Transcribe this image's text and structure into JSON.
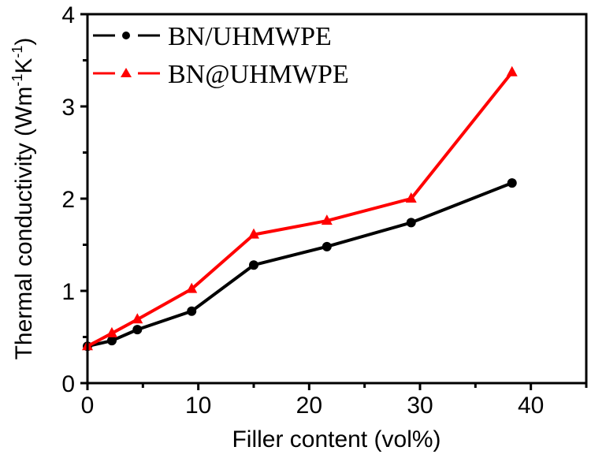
{
  "chart_data": {
    "type": "line",
    "title": "",
    "xlabel": "Filler content (vol%)",
    "ylabel_main": "Thermal  conductivity (Wm",
    "ylabel_sup1": "-1",
    "ylabel_mid": "K",
    "ylabel_sup2": "-1",
    "ylabel_end": ")",
    "xlim": [
      0,
      45
    ],
    "ylim": [
      0,
      4
    ],
    "xticks": [
      0,
      10,
      20,
      30,
      40
    ],
    "yticks": [
      0,
      1,
      2,
      3,
      4
    ],
    "grid": false,
    "legend_position": "upper left",
    "series": [
      {
        "name": "BN/UHMWPE",
        "color": "#000000",
        "marker": "circle",
        "x": [
          0,
          2.2,
          4.5,
          9.4,
          15.0,
          21.6,
          29.2,
          38.3
        ],
        "values": [
          0.4,
          0.46,
          0.58,
          0.78,
          1.28,
          1.48,
          1.74,
          2.17
        ]
      },
      {
        "name": "BN@UHMWPE",
        "color": "#ff0000",
        "marker": "triangle",
        "x": [
          0,
          2.2,
          4.5,
          9.4,
          15.0,
          21.6,
          29.2,
          38.3
        ],
        "values": [
          0.4,
          0.54,
          0.69,
          1.02,
          1.61,
          1.76,
          2.0,
          3.37
        ]
      }
    ]
  }
}
